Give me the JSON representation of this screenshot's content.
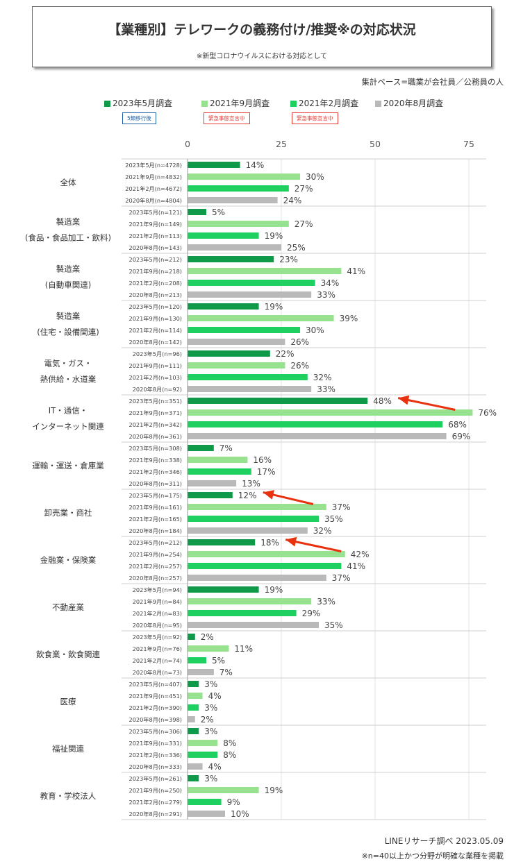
{
  "header": {
    "title": "【業種別】テレワークの義務付け/推奨※の対応状況",
    "subtitle": "※新型コロナウイルスにおける対応として",
    "basis": "集計ベース=職業が会社員／公務員の人"
  },
  "legend": [
    {
      "label": "2023年5月調査",
      "color": "#0e9a48",
      "badge": "5類移行後",
      "badge_color": "#1f5fa8"
    },
    {
      "label": "2021年9月調査",
      "color": "#96e28f",
      "badge": "緊急事態宣言中",
      "badge_color": "#e53935"
    },
    {
      "label": "2021年2月調査",
      "color": "#1ed05f",
      "badge": "緊急事態宣言中",
      "badge_color": "#e53935"
    },
    {
      "label": "2020年8月調査",
      "color": "#b9b9b9",
      "badge": "",
      "badge_color": ""
    }
  ],
  "footer": {
    "credit": "LINEリサーチ調べ 2023.05.09",
    "note": "※n=40以上かつ分野が明確な業種を掲載"
  },
  "chart_data": {
    "type": "bar",
    "orientation": "horizontal",
    "title": "【業種別】テレワークの義務付け/推奨※の対応状況",
    "xlim": [
      0,
      75
    ],
    "xticks": [
      0,
      25,
      50,
      75
    ],
    "grid": true,
    "value_suffix": "%",
    "series_names": [
      "2023年5月調査",
      "2021年9月調査",
      "2021年2月調査",
      "2020年8月調査"
    ],
    "series_colors": [
      "#0e9a48",
      "#96e28f",
      "#1ed05f",
      "#b9b9b9"
    ],
    "groups": [
      {
        "name": [
          "全体"
        ],
        "rows": [
          "2023年5月(n=4728)",
          "2021年9月(n=4832)",
          "2021年2月(n=4672)",
          "2020年8月(n=4804)"
        ],
        "values": [
          14,
          30,
          27,
          24
        ]
      },
      {
        "name": [
          "製造業",
          "(食品・食品加工・飲料)"
        ],
        "rows": [
          "2023年5月(n=121)",
          "2021年9月(n=149)",
          "2021年2月(n=113)",
          "2020年8月(n=143)"
        ],
        "values": [
          5,
          27,
          19,
          25
        ]
      },
      {
        "name": [
          "製造業",
          "(自動車関連)"
        ],
        "rows": [
          "2023年5月(n=212)",
          "2021年9月(n=218)",
          "2021年2月(n=208)",
          "2020年8月(n=213)"
        ],
        "values": [
          23,
          41,
          34,
          33
        ]
      },
      {
        "name": [
          "製造業",
          "(住宅・設備関連)"
        ],
        "rows": [
          "2023年5月(n=120)",
          "2021年9月(n=130)",
          "2021年2月(n=114)",
          "2020年8月(n=142)"
        ],
        "values": [
          19,
          39,
          30,
          26
        ]
      },
      {
        "name": [
          "電気・ガス・",
          "熱供給・水道業"
        ],
        "rows": [
          "2023年5月(n=96)",
          "2021年9月(n=111)",
          "2021年2月(n=103)",
          "2020年8月(n=92)"
        ],
        "values": [
          22,
          26,
          32,
          33
        ]
      },
      {
        "name": [
          "IT・通信・",
          "インターネット関連"
        ],
        "rows": [
          "2023年5月(n=351)",
          "2021年9月(n=371)",
          "2021年2月(n=342)",
          "2020年8月(n=361)"
        ],
        "values": [
          48,
          76,
          68,
          69
        ]
      },
      {
        "name": [
          "運輸・運送・倉庫業"
        ],
        "rows": [
          "2023年5月(n=308)",
          "2021年9月(n=338)",
          "2021年2月(n=346)",
          "2020年8月(n=311)"
        ],
        "values": [
          7,
          16,
          17,
          13
        ]
      },
      {
        "name": [
          "卸売業・商社"
        ],
        "rows": [
          "2023年5月(n=175)",
          "2021年9月(n=161)",
          "2021年2月(n=165)",
          "2020年8月(n=184)"
        ],
        "values": [
          12,
          37,
          35,
          32
        ]
      },
      {
        "name": [
          "金融業・保険業"
        ],
        "rows": [
          "2023年5月(n=212)",
          "2021年9月(n=254)",
          "2021年2月(n=257)",
          "2020年8月(n=257)"
        ],
        "values": [
          18,
          42,
          41,
          37
        ]
      },
      {
        "name": [
          "不動産業"
        ],
        "rows": [
          "2023年5月(n=94)",
          "2021年9月(n=84)",
          "2021年2月(n=83)",
          "2020年8月(n=95)"
        ],
        "values": [
          19,
          33,
          29,
          35
        ]
      },
      {
        "name": [
          "飲食業・飲食関連"
        ],
        "rows": [
          "2023年5月(n=92)",
          "2021年9月(n=76)",
          "2021年2月(n=74)",
          "2020年8月(n=73)"
        ],
        "values": [
          2,
          11,
          5,
          7
        ]
      },
      {
        "name": [
          "医療"
        ],
        "rows": [
          "2023年5月(n=407)",
          "2021年9月(n=451)",
          "2021年2月(n=390)",
          "2020年8月(n=398)"
        ],
        "values": [
          3,
          4,
          3,
          2
        ]
      },
      {
        "name": [
          "福祉関連"
        ],
        "rows": [
          "2023年5月(n=306)",
          "2021年9月(n=331)",
          "2021年2月(n=336)",
          "2020年8月(n=333)"
        ],
        "values": [
          3,
          8,
          8,
          4
        ]
      },
      {
        "name": [
          "教育・学校法人"
        ],
        "rows": [
          "2023年5月(n=261)",
          "2021年9月(n=250)",
          "2021年2月(n=279)",
          "2020年8月(n=291)"
        ],
        "values": [
          3,
          19,
          9,
          10
        ]
      }
    ],
    "arrows": [
      {
        "group": "IT・通信・インターネット関連",
        "points_to": "2023年5月"
      },
      {
        "group": "卸売業・商社",
        "points_to": "2023年5月"
      },
      {
        "group": "金融業・保険業",
        "points_to": "2023年5月"
      }
    ]
  }
}
